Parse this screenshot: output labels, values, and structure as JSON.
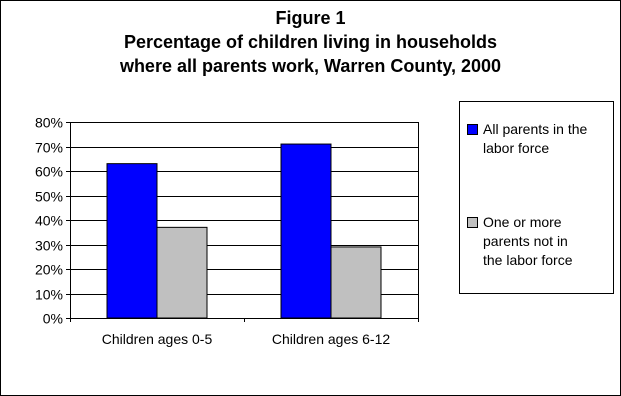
{
  "chart_data": {
    "type": "bar",
    "title_lines": [
      "Figure 1",
      "Percentage of children living in households",
      "where all parents work, Warren County, 2000"
    ],
    "categories": [
      "Children ages 0-5",
      "Children ages 6-12"
    ],
    "series": [
      {
        "name": "All parents in the labor force",
        "values": [
          0.63,
          0.71
        ],
        "color": "#0000ff"
      },
      {
        "name": "One or more parents not in the labor force",
        "values": [
          0.37,
          0.29
        ],
        "color": "#c0c0c0"
      }
    ],
    "ylim": [
      0,
      0.8
    ],
    "ytick_labels": [
      "0%",
      "10%",
      "20%",
      "30%",
      "40%",
      "50%",
      "60%",
      "70%",
      "80%"
    ],
    "grid": true,
    "legend_position": "right",
    "legend_lines": [
      [
        "All parents in the",
        "labor force"
      ],
      [
        "One or more",
        "parents not in",
        "the labor force"
      ]
    ]
  }
}
